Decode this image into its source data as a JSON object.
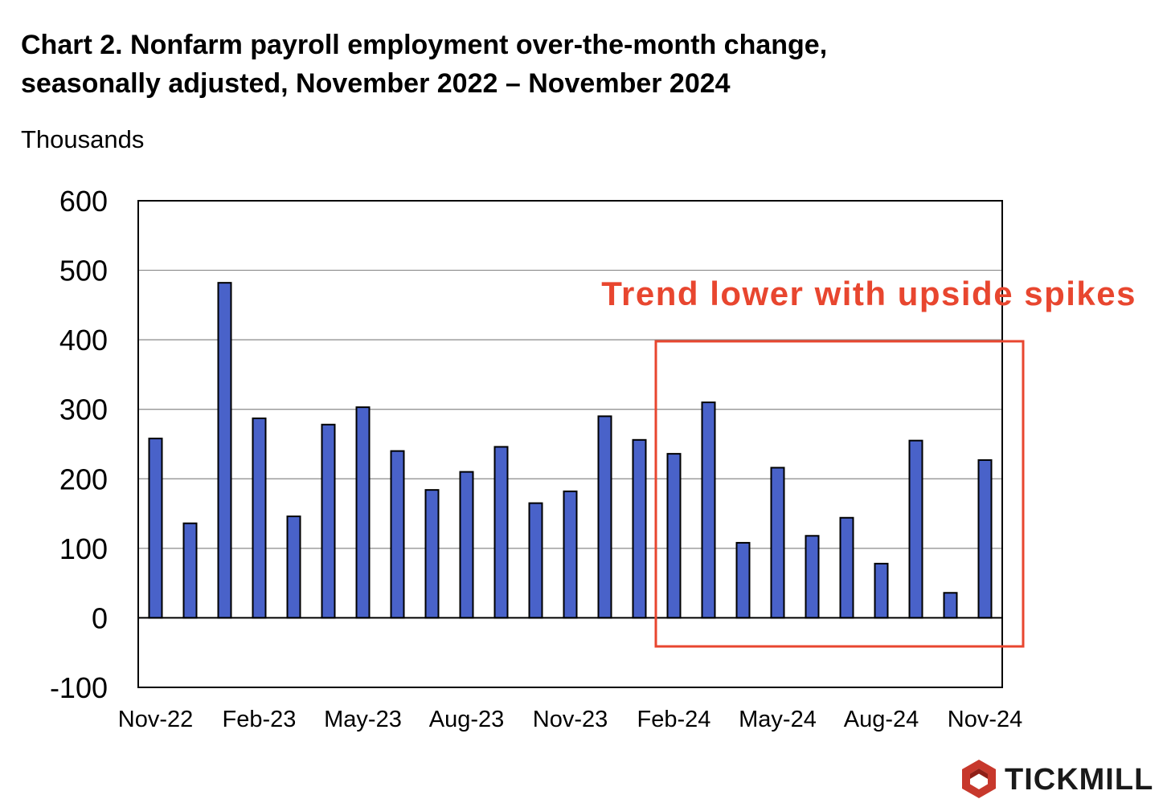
{
  "title": {
    "line1": "Chart 2. Nonfarm payroll employment over-the-month change,",
    "line2": "seasonally adjusted, November 2022 – November 2024"
  },
  "annotation": {
    "text": "Trend lower with upside spikes",
    "color": "#e8462f"
  },
  "brand": {
    "name": "TICKMILL",
    "logo_icon": "tickmill-hexagon-logo-icon",
    "logo_color": "#c7382c"
  },
  "colors": {
    "bar": "#4962c9",
    "bar_outline": "#000000",
    "grid": "#8a8a8a"
  },
  "chart_data": {
    "type": "bar",
    "title": "Chart 2. Nonfarm payroll employment over-the-month change, seasonally adjusted, November 2022 – November 2024",
    "ylabel": "Thousands",
    "xlabel": "",
    "ylim": [
      -100,
      600
    ],
    "yticks": [
      -100,
      0,
      100,
      200,
      300,
      400,
      500,
      600
    ],
    "grid": true,
    "categories": [
      "Nov-22",
      "Dec-22",
      "Jan-23",
      "Feb-23",
      "Mar-23",
      "Apr-23",
      "May-23",
      "Jun-23",
      "Jul-23",
      "Aug-23",
      "Sep-23",
      "Oct-23",
      "Nov-23",
      "Dec-23",
      "Jan-24",
      "Feb-24",
      "Mar-24",
      "Apr-24",
      "May-24",
      "Jun-24",
      "Jul-24",
      "Aug-24",
      "Sep-24",
      "Oct-24",
      "Nov-24"
    ],
    "x_tick_labels": [
      "Nov-22",
      "Feb-23",
      "May-23",
      "Aug-23",
      "Nov-23",
      "Feb-24",
      "May-24",
      "Aug-24",
      "Nov-24"
    ],
    "values": [
      258,
      136,
      482,
      287,
      146,
      278,
      303,
      240,
      184,
      210,
      246,
      165,
      182,
      290,
      256,
      236,
      310,
      108,
      216,
      118,
      144,
      78,
      255,
      36,
      227
    ],
    "highlight": {
      "from": "Feb-24",
      "to": "Nov-24",
      "label": "Trend lower with upside spikes"
    }
  }
}
